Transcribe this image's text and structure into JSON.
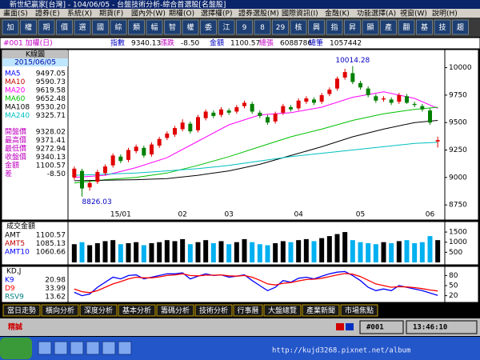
{
  "window": {
    "title": "新世紀贏家[台灣] - 104/06/05 - 台盤技術分析-綜合首選股[名盤股]"
  },
  "menu": [
    "畫面(S)",
    "證券(E)",
    "系統(X)",
    "期貨(F)",
    "國內外(W)",
    "期權(O)",
    "選擇權(P)",
    "證券選股(M)",
    "國際資訊(I)",
    "金融(K)",
    "功能選擇(A)",
    "視窗(W)",
    "說明(H)"
  ],
  "toolbar": [
    "加",
    "權",
    "期",
    "價",
    "選",
    "國",
    "綜",
    "類",
    "幅",
    "智",
    "權",
    "委",
    "江",
    "9",
    "8",
    "29",
    "核",
    "興",
    "指",
    "昇",
    "顯",
    "產",
    "翻",
    "基",
    "技",
    "趨"
  ],
  "quote": {
    "code": "#001 加權(日)",
    "items": [
      {
        "label": "指數",
        "value": 9340.13
      },
      {
        "label": "漲跌",
        "value": "-8.50"
      },
      {
        "label": "金額",
        "value": 1100.57
      },
      {
        "label": "總張",
        "value": 6088786
      },
      {
        "label": "總筆",
        "value": 1057442
      }
    ]
  },
  "chart_data": [
    {
      "type": "candlestick",
      "title": "K線圖",
      "date": "2015/06/05",
      "categories": [
        null,
        null,
        null,
        null,
        null,
        null,
        "15/01",
        null,
        null,
        null,
        null,
        null,
        null,
        null,
        "02",
        null,
        null,
        null,
        null,
        null,
        "03",
        null,
        null,
        null,
        null,
        null,
        null,
        null,
        null,
        "04",
        null,
        null,
        null,
        null,
        null,
        null,
        null,
        "05",
        null,
        null,
        null,
        null,
        null,
        null,
        null,
        null,
        "06",
        null
      ],
      "open": [
        9000,
        9060,
        8910,
        8960,
        9040,
        9110,
        9190,
        9160,
        9240,
        9270,
        9210,
        9290,
        9360,
        9390,
        9440,
        9490,
        9430,
        9540,
        9590,
        9570,
        9610,
        9600,
        9650,
        9670,
        9590,
        9550,
        9510,
        9590,
        9640,
        9630,
        9690,
        9710,
        9690,
        9760,
        9810,
        9910,
        9950,
        9860,
        9810,
        9740,
        9710,
        9710,
        9690,
        9740,
        9670,
        9650,
        9610,
        9328.02
      ],
      "high": [
        9100,
        9080,
        8970,
        9070,
        9120,
        9220,
        9210,
        9270,
        9300,
        9290,
        9320,
        9370,
        9420,
        9470,
        9530,
        9510,
        9570,
        9620,
        9610,
        9640,
        9630,
        9660,
        9700,
        9690,
        9610,
        9570,
        9600,
        9670,
        9660,
        9720,
        9740,
        9730,
        9770,
        9820,
        9920,
        9990,
        10014.28,
        9880,
        9830,
        9760,
        9740,
        9730,
        9770,
        9760,
        9690,
        9670,
        9630,
        9371.41
      ],
      "low": [
        8980,
        8826.03,
        8880,
        8940,
        9020,
        9090,
        9130,
        9140,
        9220,
        9180,
        9190,
        9270,
        9340,
        9370,
        9420,
        9400,
        9410,
        9520,
        9540,
        9550,
        9570,
        9580,
        9630,
        9580,
        9540,
        9480,
        9490,
        9570,
        9600,
        9610,
        9670,
        9660,
        9670,
        9740,
        9790,
        9890,
        9850,
        9800,
        9730,
        9680,
        9690,
        9660,
        9670,
        9670,
        9640,
        9600,
        9480,
        9272.94
      ],
      "close": [
        9080,
        8900,
        8950,
        9050,
        9100,
        9200,
        9150,
        9250,
        9280,
        9200,
        9300,
        9350,
        9400,
        9450,
        9500,
        9420,
        9550,
        9600,
        9560,
        9620,
        9590,
        9640,
        9680,
        9600,
        9560,
        9500,
        9580,
        9650,
        9620,
        9700,
        9720,
        9680,
        9750,
        9800,
        9900,
        9960,
        9870,
        9820,
        9750,
        9700,
        9720,
        9680,
        9750,
        9680,
        9660,
        9620,
        9500,
        9340.13
      ],
      "up_color": "#e00000",
      "down_color": "#008000",
      "ylim": [
        8700,
        10150
      ],
      "yticks": [
        8750,
        9000,
        9250,
        9500,
        9750,
        10000
      ],
      "legend": [
        {
          "name": "MA5",
          "value": 9497.05,
          "color": "#0000ff"
        },
        {
          "name": "MA10",
          "value": 9590.73,
          "color": "#c00000"
        },
        {
          "name": "MA20",
          "value": 9619.58,
          "color": "#ff00ff",
          "x": [
            0,
            4,
            8,
            12,
            16,
            20,
            24,
            28,
            32,
            36,
            40,
            44,
            47
          ],
          "values": [
            9000,
            9020,
            9090,
            9180,
            9330,
            9480,
            9570,
            9590,
            9640,
            9730,
            9780,
            9720,
            9630
          ]
        },
        {
          "name": "MA60",
          "value": 9652.48,
          "color": "#00c000",
          "x": [
            0,
            4,
            8,
            12,
            16,
            20,
            24,
            28,
            32,
            36,
            40,
            44,
            47
          ],
          "values": [
            8950,
            8980,
            9000,
            9040,
            9110,
            9190,
            9280,
            9370,
            9440,
            9520,
            9580,
            9620,
            9640
          ]
        },
        {
          "name": "MA108",
          "value": "9530.20",
          "color": "#000000",
          "x": [
            0,
            4,
            8,
            12,
            16,
            20,
            24,
            28,
            32,
            36,
            40,
            44,
            47
          ],
          "values": [
            8970,
            8975,
            8980,
            8990,
            9020,
            9060,
            9120,
            9200,
            9280,
            9370,
            9440,
            9500,
            9520
          ]
        },
        {
          "name": "MA240",
          "value": 9325.71,
          "color": "#00c0c0",
          "x": [
            0,
            4,
            8,
            12,
            16,
            20,
            24,
            28,
            32,
            36,
            40,
            44,
            47
          ],
          "values": [
            9020,
            9030,
            9040,
            9060,
            9080,
            9110,
            9150,
            9190,
            9220,
            9250,
            9280,
            9310,
            9320
          ]
        }
      ],
      "info": [
        {
          "name": "開盤價",
          "value": 9328.02
        },
        {
          "name": "最高價",
          "value": 9371.41
        },
        {
          "name": "最低價",
          "value": 9272.94
        },
        {
          "name": "收盤價",
          "value": 9340.13
        },
        {
          "name": "金額",
          "value": 1100.57
        },
        {
          "name": "差",
          "value": "-8.50"
        }
      ],
      "annotations": [
        {
          "x": 36,
          "value": 10014.28
        },
        {
          "x": 1,
          "value": 8826.03
        }
      ]
    },
    {
      "type": "bar",
      "title": "成交金額",
      "values": [
        900,
        1000,
        850,
        950,
        1050,
        1100,
        900,
        950,
        1000,
        850,
        950,
        1000,
        1100,
        1050,
        1150,
        900,
        1000,
        1100,
        950,
        1050,
        900,
        1000,
        1150,
        1000,
        900,
        850,
        950,
        1050,
        1000,
        1100,
        1150,
        1050,
        1200,
        1300,
        1400,
        1500,
        1100,
        1000,
        950,
        900,
        1000,
        950,
        1050,
        1100,
        950,
        1000,
        1300,
        1100.57
      ],
      "up_color": "#000000",
      "down_color": "#00b0f0",
      "ylim": [
        0,
        1700
      ],
      "yticks": [
        500,
        1000,
        1500
      ],
      "legend": [
        {
          "name": "AMT",
          "value": 1100.57,
          "color": "#000000"
        },
        {
          "name": "AMT5",
          "value": 1085.13,
          "color": "#c00000"
        },
        {
          "name": "AMT10",
          "value": 1060.66,
          "color": "#0000ff"
        }
      ]
    },
    {
      "type": "line",
      "title": "KD,J",
      "series": [
        {
          "name": "K9",
          "value": 20.98,
          "color": "#0000ff",
          "values": [
            30,
            20,
            25,
            45,
            60,
            75,
            70,
            80,
            82,
            70,
            75,
            80,
            85,
            85,
            88,
            70,
            78,
            85,
            80,
            82,
            75,
            78,
            82,
            65,
            50,
            35,
            45,
            65,
            60,
            72,
            75,
            70,
            78,
            85,
            90,
            92,
            80,
            65,
            45,
            35,
            40,
            35,
            50,
            45,
            40,
            35,
            28,
            20.98
          ]
        },
        {
          "name": "D9",
          "value": 33.99,
          "color": "#ff0000",
          "values": [
            40,
            32,
            29,
            35,
            45,
            55,
            62,
            70,
            75,
            73,
            73,
            76,
            80,
            82,
            85,
            80,
            79,
            81,
            81,
            82,
            79,
            78,
            80,
            75,
            66,
            55,
            52,
            57,
            59,
            64,
            68,
            69,
            72,
            77,
            82,
            86,
            84,
            77,
            66,
            55,
            50,
            45,
            47,
            46,
            44,
            41,
            37,
            33.99
          ]
        },
        {
          "name": "RSV9",
          "value": 13.62,
          "color": "#008080"
        }
      ],
      "ylim": [
        0,
        100
      ],
      "yticks": [
        20,
        50,
        80
      ]
    }
  ],
  "tabs": [
    "當日走勢",
    "橫向分析",
    "深度分析",
    "基本分析",
    "籌碼分析",
    "技術分析",
    "行事曆",
    "大盤總覽",
    "產業新聞",
    "市場焦點"
  ],
  "status": {
    "brand": "精誠",
    "code": "#001",
    "time": "13:46:10"
  },
  "taskbar": {
    "watermark": "http://kujd3268.pixnet.net/album"
  }
}
